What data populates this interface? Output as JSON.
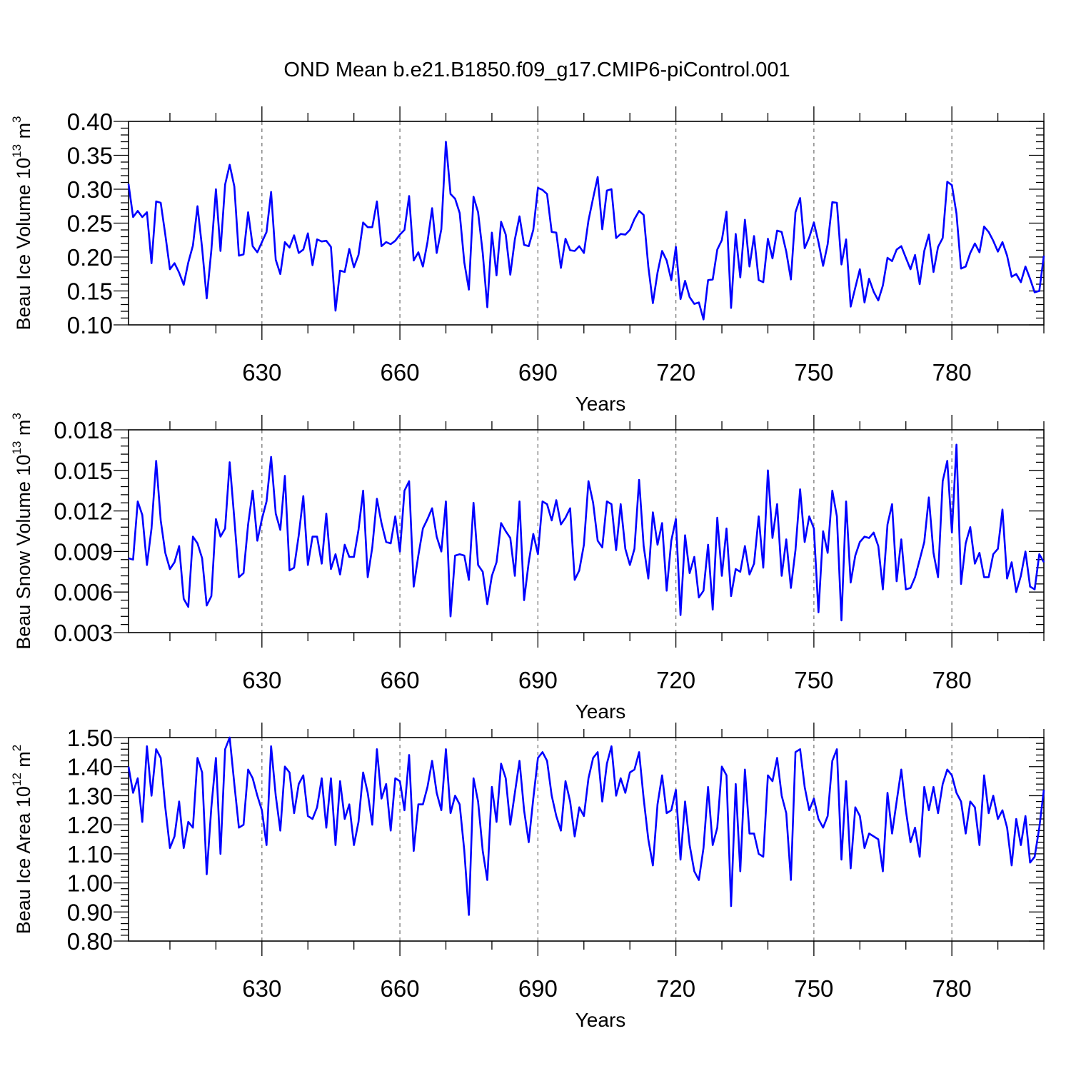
{
  "title": "OND Mean b.e21.B1850.f09_g17.CMIP6-piControl.001",
  "colors": {
    "series": "#0000ff",
    "axes": "#000000",
    "grid": "#777777"
  },
  "chart_data": [
    {
      "type": "line",
      "ylabel": {
        "text": "Beau Ice Volume 10",
        "exponent": "13",
        "unit": " m",
        "unit_exponent": "3"
      },
      "xlabel": "Years",
      "xlim": [
        601,
        800
      ],
      "ylim": [
        0.1,
        0.4
      ],
      "yticks": [
        "0.10",
        "0.15",
        "0.20",
        "0.25",
        "0.30",
        "0.35",
        "0.40"
      ],
      "xticks": [
        "630",
        "660",
        "690",
        "720",
        "750",
        "780"
      ],
      "x_start": 601,
      "series": [
        {
          "name": "Beau Ice Volume",
          "values": [
            0.308,
            0.259,
            0.268,
            0.259,
            0.266,
            0.191,
            0.282,
            0.28,
            0.233,
            0.182,
            0.191,
            0.177,
            0.159,
            0.192,
            0.217,
            0.275,
            0.213,
            0.139,
            0.21,
            0.3,
            0.209,
            0.307,
            0.336,
            0.304,
            0.202,
            0.204,
            0.266,
            0.216,
            0.207,
            0.222,
            0.237,
            0.296,
            0.196,
            0.175,
            0.222,
            0.214,
            0.232,
            0.206,
            0.211,
            0.235,
            0.188,
            0.226,
            0.223,
            0.224,
            0.215,
            0.121,
            0.18,
            0.178,
            0.212,
            0.185,
            0.203,
            0.251,
            0.244,
            0.244,
            0.282,
            0.216,
            0.222,
            0.219,
            0.224,
            0.233,
            0.24,
            0.29,
            0.195,
            0.207,
            0.186,
            0.222,
            0.272,
            0.206,
            0.241,
            0.37,
            0.293,
            0.286,
            0.265,
            0.192,
            0.152,
            0.289,
            0.266,
            0.206,
            0.126,
            0.236,
            0.173,
            0.252,
            0.233,
            0.174,
            0.226,
            0.26,
            0.218,
            0.216,
            0.24,
            0.302,
            0.299,
            0.293,
            0.237,
            0.236,
            0.184,
            0.227,
            0.21,
            0.209,
            0.216,
            0.206,
            0.254,
            0.287,
            0.318,
            0.241,
            0.298,
            0.3,
            0.228,
            0.234,
            0.233,
            0.24,
            0.256,
            0.268,
            0.262,
            0.186,
            0.132,
            0.177,
            0.209,
            0.195,
            0.166,
            0.215,
            0.138,
            0.165,
            0.141,
            0.131,
            0.133,
            0.108,
            0.166,
            0.167,
            0.211,
            0.225,
            0.267,
            0.125,
            0.234,
            0.17,
            0.255,
            0.186,
            0.231,
            0.166,
            0.163,
            0.227,
            0.198,
            0.239,
            0.237,
            0.208,
            0.167,
            0.266,
            0.287,
            0.213,
            0.229,
            0.251,
            0.222,
            0.187,
            0.219,
            0.281,
            0.28,
            0.189,
            0.226,
            0.127,
            0.155,
            0.182,
            0.133,
            0.168,
            0.149,
            0.136,
            0.158,
            0.199,
            0.194,
            0.211,
            0.216,
            0.199,
            0.182,
            0.203,
            0.16,
            0.209,
            0.233,
            0.178,
            0.215,
            0.228,
            0.311,
            0.306,
            0.264,
            0.183,
            0.186,
            0.206,
            0.22,
            0.207,
            0.245,
            0.237,
            0.224,
            0.208,
            0.222,
            0.202,
            0.171,
            0.175,
            0.163,
            0.186,
            0.168,
            0.148,
            0.15,
            0.202
          ]
        }
      ]
    },
    {
      "type": "line",
      "ylabel": {
        "text": "Beau Snow Volume 10",
        "exponent": "13",
        "unit": " m",
        "unit_exponent": "3"
      },
      "xlabel": "Years",
      "xlim": [
        601,
        800
      ],
      "ylim": [
        0.003,
        0.018
      ],
      "yticks": [
        "0.003",
        "0.006",
        "0.009",
        "0.012",
        "0.015",
        "0.018"
      ],
      "xticks": [
        "630",
        "660",
        "690",
        "720",
        "750",
        "780"
      ],
      "x_start": 601,
      "series": [
        {
          "name": "Beau Snow Volume",
          "values": [
            0.0085,
            0.0084,
            0.0127,
            0.0117,
            0.008,
            0.0107,
            0.0157,
            0.0113,
            0.0089,
            0.0077,
            0.0082,
            0.0094,
            0.0055,
            0.0049,
            0.0101,
            0.0096,
            0.0085,
            0.005,
            0.0057,
            0.0114,
            0.0101,
            0.0107,
            0.0156,
            0.0114,
            0.0071,
            0.0074,
            0.011,
            0.0135,
            0.0098,
            0.0114,
            0.0127,
            0.016,
            0.0118,
            0.0106,
            0.0146,
            0.0076,
            0.0078,
            0.0102,
            0.0131,
            0.008,
            0.0101,
            0.0101,
            0.0081,
            0.0118,
            0.0077,
            0.0088,
            0.0073,
            0.0095,
            0.0086,
            0.0086,
            0.0106,
            0.0135,
            0.0071,
            0.0093,
            0.0129,
            0.0111,
            0.0097,
            0.0096,
            0.0116,
            0.009,
            0.0135,
            0.0142,
            0.0064,
            0.0087,
            0.0107,
            0.0114,
            0.0122,
            0.0101,
            0.009,
            0.0127,
            0.0042,
            0.0087,
            0.0088,
            0.0087,
            0.0069,
            0.0126,
            0.008,
            0.0075,
            0.0051,
            0.0072,
            0.0082,
            0.0111,
            0.0105,
            0.01,
            0.0072,
            0.0127,
            0.0054,
            0.0082,
            0.0103,
            0.0088,
            0.0127,
            0.0125,
            0.0113,
            0.0128,
            0.011,
            0.0115,
            0.0122,
            0.0069,
            0.0076,
            0.0095,
            0.0142,
            0.0126,
            0.0098,
            0.0093,
            0.0127,
            0.0125,
            0.0091,
            0.0125,
            0.0092,
            0.008,
            0.0092,
            0.0143,
            0.0094,
            0.007,
            0.0119,
            0.0095,
            0.0111,
            0.0061,
            0.0098,
            0.0114,
            0.0043,
            0.0102,
            0.0074,
            0.0086,
            0.0056,
            0.0061,
            0.0095,
            0.0047,
            0.0115,
            0.0072,
            0.0107,
            0.0057,
            0.0077,
            0.0075,
            0.0094,
            0.0073,
            0.0081,
            0.0116,
            0.0078,
            0.015,
            0.01,
            0.0125,
            0.0072,
            0.0099,
            0.0063,
            0.0091,
            0.0136,
            0.0097,
            0.0116,
            0.0107,
            0.0045,
            0.0105,
            0.0089,
            0.0135,
            0.0116,
            0.0039,
            0.0127,
            0.0067,
            0.0087,
            0.0097,
            0.0101,
            0.01,
            0.0104,
            0.0094,
            0.0062,
            0.011,
            0.0125,
            0.0068,
            0.0099,
            0.0062,
            0.0063,
            0.0071,
            0.0084,
            0.0097,
            0.013,
            0.0089,
            0.0071,
            0.0142,
            0.0157,
            0.0104,
            0.0169,
            0.0066,
            0.0096,
            0.0108,
            0.0081,
            0.0089,
            0.0071,
            0.0071,
            0.0088,
            0.0092,
            0.0121,
            0.007,
            0.0082,
            0.006,
            0.0072,
            0.009,
            0.0064,
            0.0062,
            0.0088,
            0.0082
          ]
        }
      ]
    },
    {
      "type": "line",
      "ylabel": {
        "text": "Beau Ice Area 10",
        "exponent": "12",
        "unit": " m",
        "unit_exponent": "2"
      },
      "xlabel": "Years",
      "xlim": [
        601,
        800
      ],
      "ylim": [
        0.8,
        1.5
      ],
      "yticks": [
        "0.80",
        "0.90",
        "1.00",
        "1.10",
        "1.20",
        "1.30",
        "1.40",
        "1.50"
      ],
      "xticks": [
        "630",
        "660",
        "690",
        "720",
        "750",
        "780"
      ],
      "x_start": 601,
      "series": [
        {
          "name": "Beau Ice Area",
          "values": [
            1.4,
            1.31,
            1.36,
            1.21,
            1.47,
            1.3,
            1.46,
            1.43,
            1.26,
            1.12,
            1.16,
            1.28,
            1.12,
            1.21,
            1.19,
            1.43,
            1.38,
            1.03,
            1.26,
            1.43,
            1.1,
            1.46,
            1.5,
            1.34,
            1.19,
            1.2,
            1.39,
            1.36,
            1.3,
            1.25,
            1.13,
            1.47,
            1.3,
            1.18,
            1.4,
            1.38,
            1.24,
            1.34,
            1.37,
            1.23,
            1.22,
            1.26,
            1.36,
            1.19,
            1.36,
            1.13,
            1.35,
            1.22,
            1.27,
            1.13,
            1.21,
            1.38,
            1.31,
            1.2,
            1.46,
            1.29,
            1.34,
            1.18,
            1.36,
            1.35,
            1.25,
            1.44,
            1.11,
            1.27,
            1.27,
            1.33,
            1.42,
            1.31,
            1.25,
            1.46,
            1.24,
            1.3,
            1.27,
            1.11,
            0.89,
            1.36,
            1.28,
            1.11,
            1.01,
            1.33,
            1.21,
            1.41,
            1.36,
            1.2,
            1.31,
            1.42,
            1.25,
            1.14,
            1.29,
            1.43,
            1.45,
            1.42,
            1.3,
            1.23,
            1.18,
            1.35,
            1.28,
            1.16,
            1.26,
            1.23,
            1.36,
            1.43,
            1.45,
            1.28,
            1.41,
            1.47,
            1.3,
            1.36,
            1.31,
            1.38,
            1.39,
            1.45,
            1.29,
            1.15,
            1.06,
            1.27,
            1.37,
            1.24,
            1.25,
            1.32,
            1.08,
            1.28,
            1.13,
            1.04,
            1.01,
            1.12,
            1.33,
            1.13,
            1.19,
            1.4,
            1.37,
            0.92,
            1.34,
            1.04,
            1.39,
            1.17,
            1.17,
            1.1,
            1.09,
            1.37,
            1.35,
            1.43,
            1.3,
            1.24,
            1.01,
            1.45,
            1.46,
            1.33,
            1.25,
            1.29,
            1.22,
            1.19,
            1.23,
            1.42,
            1.46,
            1.08,
            1.35,
            1.05,
            1.26,
            1.23,
            1.12,
            1.17,
            1.16,
            1.15,
            1.04,
            1.31,
            1.17,
            1.28,
            1.39,
            1.25,
            1.14,
            1.19,
            1.09,
            1.33,
            1.25,
            1.33,
            1.24,
            1.34,
            1.39,
            1.37,
            1.31,
            1.28,
            1.17,
            1.28,
            1.26,
            1.13,
            1.37,
            1.24,
            1.3,
            1.22,
            1.25,
            1.19,
            1.06,
            1.22,
            1.13,
            1.23,
            1.07,
            1.09,
            1.19,
            1.32
          ]
        }
      ]
    }
  ]
}
